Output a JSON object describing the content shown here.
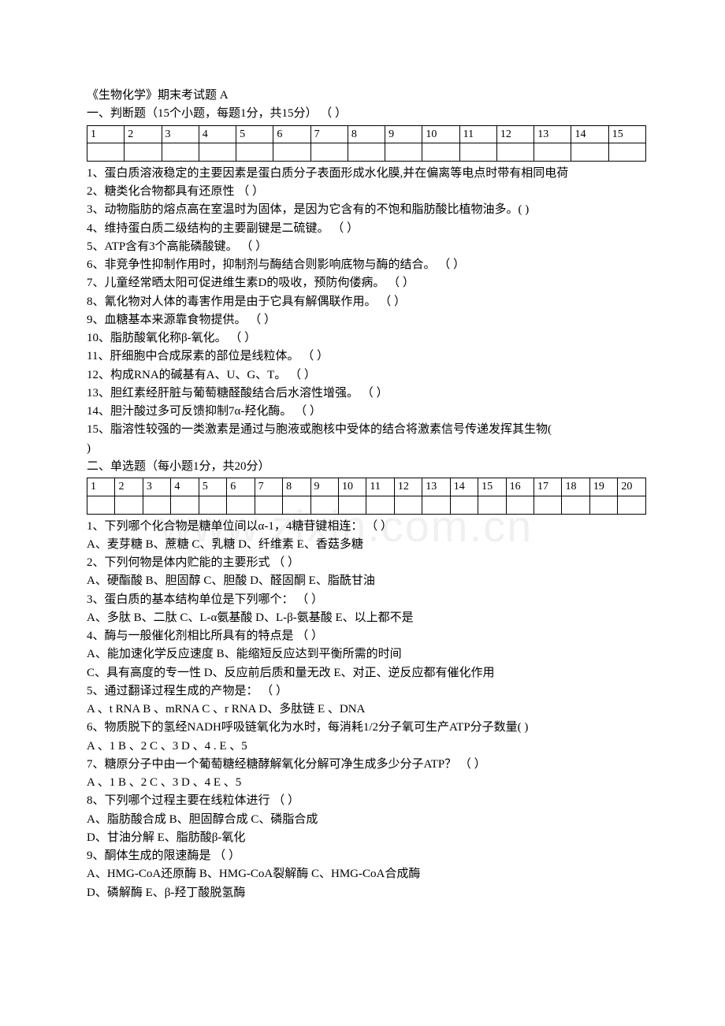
{
  "title": "《生物化学》期末考试题 A",
  "section1": {
    "heading": "一、判断题（15个小题，每题1分，共15分）                     （     ）",
    "cols": 15,
    "q1": "1、蛋白质溶液稳定的主要因素是蛋白质分子表面形成水化膜,并在偏离等电点时带有相同电荷",
    "q2": "2、糖类化合物都具有还原性                                              （    ）",
    "q3": "3、动物脂肪的熔点高在室温时为固体，是因为它含有的不饱和脂肪酸比植物油多。(     )",
    "q4": "4、维持蛋白质二级结构的主要副键是二硫键。                           （    ）",
    "q5": "5、ATP含有3个高能磷酸键。                                                 （    ）",
    "q6": "6、非竞争性抑制作用时，抑制剂与酶结合则影响底物与酶的结合。       （    ）",
    "q7": "7、儿童经常晒太阳可促进维生素D的吸收，预防佝偻病。                 （    ）",
    "q8": "8、氰化物对人体的毒害作用是由于它具有解偶联作用。                     （    ）",
    "q9": "9、血糖基本来源靠食物提供。                                           （    ）",
    "q10": "10、脂肪酸氧化称β-氧化。                                         （    ）",
    "q11": "11、肝细胞中合成尿素的部位是线粒体。                             （    ）",
    "q12": "12、构成RNA的碱基有A、U、G、T。                                   （    ）",
    "q13": "13、胆红素经肝脏与葡萄糖醛酸结合后水溶性增强。                       （    ）",
    "q14": "14、胆汁酸过多可反馈抑制7α-羟化酶。                               （    ）",
    "q15a": "15、脂溶性较强的一类激素是通过与胞液或胞核中受体的结合将激素信号传递发挥其生物(",
    "q15b": ")"
  },
  "section2": {
    "heading": "二、单选题（每小题1分，共20分）",
    "cols": 20,
    "q1": "1、下列哪个化合物是糖单位间以α-1，4糖苷键相连：                 （    ）",
    "q1o": "A、麦芽糖   B、蔗糖     C、乳糖    D、纤维素     E、香菇多糖",
    "q2": "2、下列何物是体内贮能的主要形式                              （    ）",
    "q2o": "A、硬酯酸   B、胆固醇    C、胆酸    D、醛固酮   E、脂酰甘油",
    "q3": "3、蛋白质的基本结构单位是下列哪个：                                 （    ）",
    "q3o": "A、多肽   B、二肽   C、L-α氨基酸   D、L-β-氨基酸    E、以上都不是",
    "q4": "4、酶与一般催化剂相比所具有的特点是                                （    ）",
    "q4o1": "A、能加速化学反应速度   B、能缩短反应达到平衡所需的时间",
    "q4o2": "C、具有高度的专一性    D、反应前后质和量无改  E、对正、逆反应都有催化作用",
    "q5": "5、通过翻译过程生成的产物是：                                   （    ）",
    "q5o": " A 、t RNA    B 、mRNA    C 、r RNA    D、多肽链     E 、DNA",
    "q6": "6、物质脱下的氢经NADH呼吸链氧化为水时，每消耗1/2分子氧可生产ATP分子数量(     )",
    "q6o": " A 、1      B 、2      C 、3       D 、4 .      E 、5",
    "q7": "7、糖原分子中由一个葡萄糖经糖酵解氧化分解可净生成多少分子ATP？       （    ）",
    "q7o": " A 、1      B 、2        C 、3        D 、4        E 、5",
    "q8": "8、下列哪个过程主要在线粒体进行                                  （    ）",
    "q8o1": "A、脂肪酸合成     B、胆固醇合成               C、磷脂合成",
    "q8o2": "D、甘油分解                 E、脂肪酸β-氧化",
    "q9": "9、酮体生成的限速酶是                                           （     ）",
    "q9o1": "A、HMG-CoA还原酶    B、HMG-CoA裂解酶       C、HMG-CoA合成酶",
    "q9o2": "D、磷解酶              E、β-羟丁酸脱氢酶"
  },
  "watermark": "www.zixin.com.cn"
}
